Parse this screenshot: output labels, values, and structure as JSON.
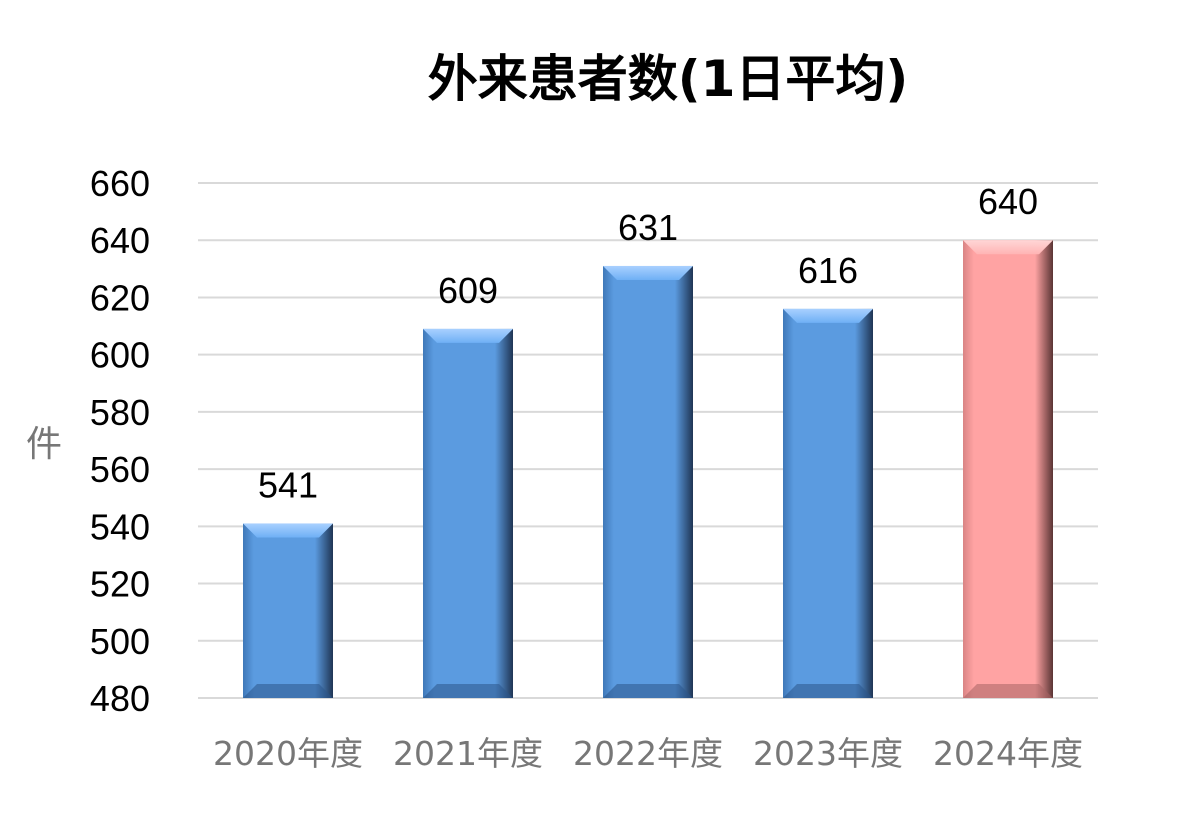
{
  "chart_data": {
    "type": "bar",
    "title": "外来患者数(1日平均)",
    "ylabel": "件",
    "xlabel": "",
    "categories": [
      "2020年度",
      "2021年度",
      "2022年度",
      "2023年度",
      "2024年度"
    ],
    "values": [
      541,
      609,
      631,
      616,
      640
    ],
    "ylim": [
      480,
      660
    ],
    "yticks": [
      660,
      640,
      620,
      600,
      580,
      560,
      540,
      520,
      500,
      480
    ],
    "grid": true,
    "bar_colors": [
      "#5b9bd5",
      "#5b9bd5",
      "#5b9bd5",
      "#5b9bd5",
      "#ff9f9f"
    ],
    "highlight_index": 4
  }
}
